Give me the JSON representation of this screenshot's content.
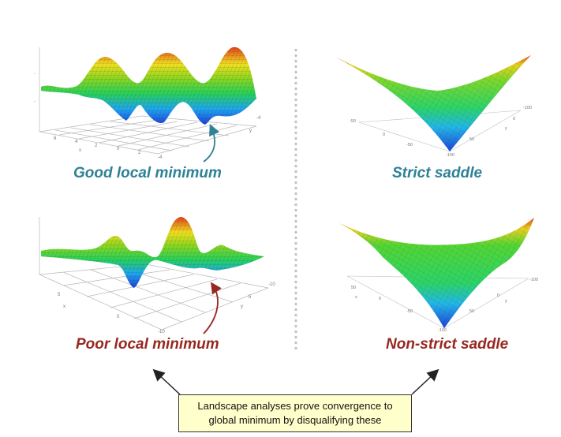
{
  "colors": {
    "good_caption": "#2e8196",
    "poor_caption": "#97271f",
    "saddle_caption": "#2e8196",
    "nonstrict_caption": "#97271f",
    "note_background": "#ffffcc",
    "arrow_good": "#2e8196",
    "arrow_poor": "#97271f"
  },
  "captions": {
    "good_local_minimum": "Good local minimum",
    "strict_saddle": "Strict saddle",
    "poor_local_minimum": "Poor local minimum",
    "non_strict_saddle": "Non-strict saddle"
  },
  "note": {
    "line1": "Landscape analyses prove convergence to",
    "line2": "global minimum by disqualifying these"
  }
}
